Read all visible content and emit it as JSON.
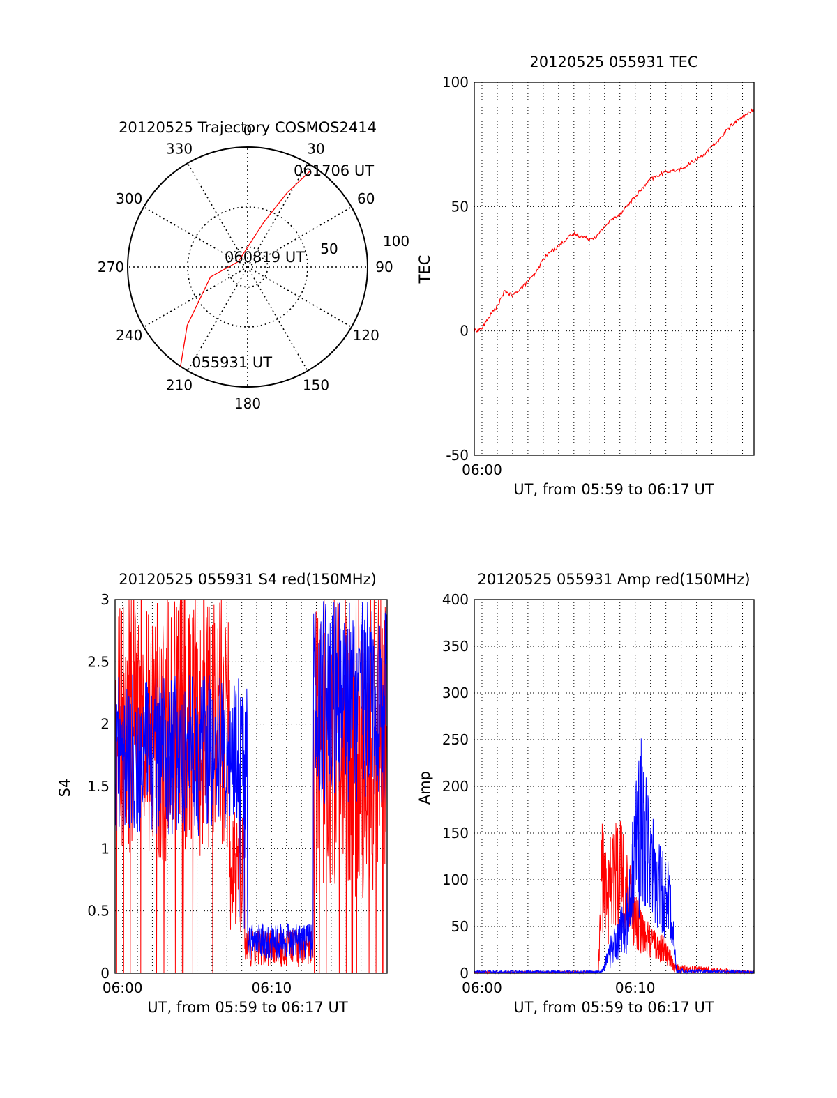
{
  "colors": {
    "red": "#ff0000",
    "blue": "#0000ff",
    "axis": "#000000",
    "grid": "#000000"
  },
  "chart_data": [
    {
      "id": "trajectory",
      "type": "polar",
      "title": "20120525 Trajectory COSMOS2414",
      "azimuth_labels": [
        "0",
        "30",
        "60",
        "90",
        "120",
        "150",
        "180",
        "210",
        "240",
        "270",
        "300",
        "330"
      ],
      "radial_ticks": [
        0,
        50,
        100
      ],
      "radial_labels": [
        "50",
        "100"
      ],
      "annotations": [
        "061706 UT",
        "060819 UT",
        "055931 UT"
      ],
      "series": [
        {
          "color": "#ff0000",
          "points": [
            {
              "az": 214,
              "r": 100
            },
            {
              "az": 226,
              "r": 70
            },
            {
              "az": 255,
              "r": 32
            },
            {
              "az": 300,
              "r": 9
            },
            {
              "az": 20,
              "r": 40
            },
            {
              "az": 28,
              "r": 70
            },
            {
              "az": 33,
              "r": 95
            }
          ]
        }
      ]
    },
    {
      "id": "tec",
      "type": "line",
      "title": "20120525 055931 TEC",
      "ylabel": "TEC",
      "xlabel": "UT, from 05:59 to 06:17 UT",
      "xlim": [
        -0.5,
        17.75
      ],
      "ylim": [
        -50,
        100
      ],
      "yticks": [
        -50,
        0,
        50,
        100
      ],
      "ytick_labels": [
        "-50",
        "0",
        "50",
        "100"
      ],
      "xticks": [
        0
      ],
      "xtick_labels": [
        "06:00"
      ],
      "series": [
        {
          "color": "#ff0000",
          "x": [
            -0.5,
            0,
            0.5,
            1,
            1.5,
            2,
            2.3,
            2.7,
            3,
            3.5,
            4,
            4.5,
            5,
            5.5,
            6,
            6.5,
            7,
            7.5,
            8,
            8.5,
            9,
            10,
            11,
            12,
            13,
            13.5,
            14,
            14.5,
            15,
            15.5,
            16,
            16.5,
            17,
            17.5,
            17.75
          ],
          "y": [
            0,
            1,
            6,
            10,
            16,
            14,
            16,
            18,
            20,
            23,
            29,
            32,
            34,
            37,
            39,
            38,
            37,
            38,
            42,
            45,
            47,
            54,
            61,
            64,
            65,
            67,
            69,
            71,
            74,
            77,
            81,
            84,
            86,
            88,
            89
          ]
        }
      ]
    },
    {
      "id": "s4",
      "type": "line",
      "title": "20120525 055931 S4 red(150MHz)",
      "ylabel": "S4",
      "xlabel": "UT, from 05:59 to 06:17 UT",
      "xlim": [
        -0.5,
        17.75
      ],
      "ylim": [
        0,
        3
      ],
      "yticks": [
        0,
        0.5,
        1,
        1.5,
        2,
        2.5,
        3
      ],
      "ytick_labels": [
        "0",
        "0.5",
        "1",
        "1.5",
        "2",
        "2.5",
        "3"
      ],
      "xticks": [
        0,
        10
      ],
      "xtick_labels": [
        "06:00",
        "06:10"
      ],
      "series": [
        {
          "color": "#ff0000",
          "segments": [
            {
              "x0": -0.5,
              "x1": 7.2,
              "lo": 0.9,
              "hi": 3.0
            },
            {
              "x0": 7.2,
              "x1": 8.2,
              "lo": 0.3,
              "hi": 1.3
            },
            {
              "x0": 8.2,
              "x1": 12.8,
              "lo": 0.05,
              "hi": 0.35
            },
            {
              "x0": 12.8,
              "x1": 17.75,
              "lo": 0.6,
              "hi": 3.0
            }
          ]
        },
        {
          "color": "#0000ff",
          "segments": [
            {
              "x0": -0.5,
              "x1": 7.8,
              "lo": 1.1,
              "hi": 2.4
            },
            {
              "x0": 7.8,
              "x1": 8.4,
              "lo": 0.3,
              "hi": 2.3
            },
            {
              "x0": 8.4,
              "x1": 12.8,
              "lo": 0.1,
              "hi": 0.4
            },
            {
              "x0": 12.8,
              "x1": 17.75,
              "lo": 1.3,
              "hi": 3.0
            }
          ]
        }
      ]
    },
    {
      "id": "amp",
      "type": "line",
      "title": "20120525 055931 Amp red(150MHz)",
      "ylabel": "Amp",
      "xlabel": "UT, from 05:59 to 06:17 UT",
      "xlim": [
        -0.5,
        17.75
      ],
      "ylim": [
        0,
        400
      ],
      "yticks": [
        0,
        50,
        100,
        150,
        200,
        250,
        300,
        350,
        400
      ],
      "ytick_labels": [
        "0",
        "50",
        "100",
        "150",
        "200",
        "250",
        "300",
        "350",
        "400"
      ],
      "xticks": [
        0,
        10
      ],
      "xtick_labels": [
        "06:00",
        "06:10"
      ],
      "series": [
        {
          "color": "#ff0000",
          "envelope": [
            {
              "x": -0.5,
              "lo": 0,
              "hi": 2
            },
            {
              "x": 7.6,
              "lo": 0,
              "hi": 2
            },
            {
              "x": 7.8,
              "lo": 40,
              "hi": 180
            },
            {
              "x": 8.3,
              "lo": 30,
              "hi": 150
            },
            {
              "x": 9.0,
              "lo": 50,
              "hi": 170
            },
            {
              "x": 9.6,
              "lo": 30,
              "hi": 120
            },
            {
              "x": 10.4,
              "lo": 20,
              "hi": 70
            },
            {
              "x": 11.0,
              "lo": 15,
              "hi": 50
            },
            {
              "x": 12.0,
              "lo": 10,
              "hi": 40
            },
            {
              "x": 12.6,
              "lo": 0,
              "hi": 10
            },
            {
              "x": 17.75,
              "lo": 0,
              "hi": 2
            }
          ]
        },
        {
          "color": "#0000ff",
          "envelope": [
            {
              "x": -0.5,
              "lo": 0,
              "hi": 3
            },
            {
              "x": 7.8,
              "lo": 0,
              "hi": 3
            },
            {
              "x": 8.4,
              "lo": 5,
              "hi": 40
            },
            {
              "x": 9.5,
              "lo": 20,
              "hi": 90
            },
            {
              "x": 10.3,
              "lo": 60,
              "hi": 270
            },
            {
              "x": 11.0,
              "lo": 60,
              "hi": 180
            },
            {
              "x": 11.6,
              "lo": 40,
              "hi": 140
            },
            {
              "x": 12.3,
              "lo": 30,
              "hi": 120
            },
            {
              "x": 12.7,
              "lo": 0,
              "hi": 5
            },
            {
              "x": 17.75,
              "lo": 0,
              "hi": 3
            }
          ]
        }
      ]
    }
  ]
}
